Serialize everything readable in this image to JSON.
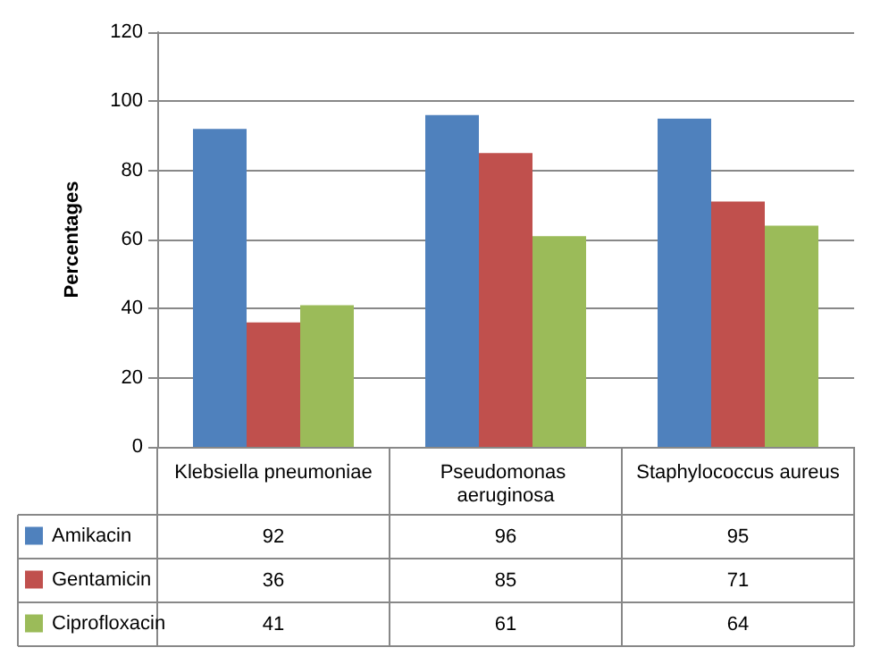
{
  "chart_data": {
    "type": "bar",
    "ylabel": "Percentages",
    "categories": [
      "Klebsiella pneumoniae",
      "Pseudomonas aeruginosa",
      "Staphylococcus aureus"
    ],
    "series": [
      {
        "name": "Amikacin",
        "color": "#4f81bd",
        "values": [
          92,
          96,
          95
        ]
      },
      {
        "name": "Gentamicin",
        "color": "#c0504d",
        "values": [
          36,
          85,
          71
        ]
      },
      {
        "name": "Ciprofloxacin",
        "color": "#9bbb59",
        "values": [
          41,
          61,
          64
        ]
      }
    ],
    "ylim": [
      0,
      120
    ],
    "yticks": [
      0,
      20,
      40,
      60,
      80,
      100,
      120
    ],
    "grid": "y",
    "legend": "bottom",
    "data_labels": true
  }
}
